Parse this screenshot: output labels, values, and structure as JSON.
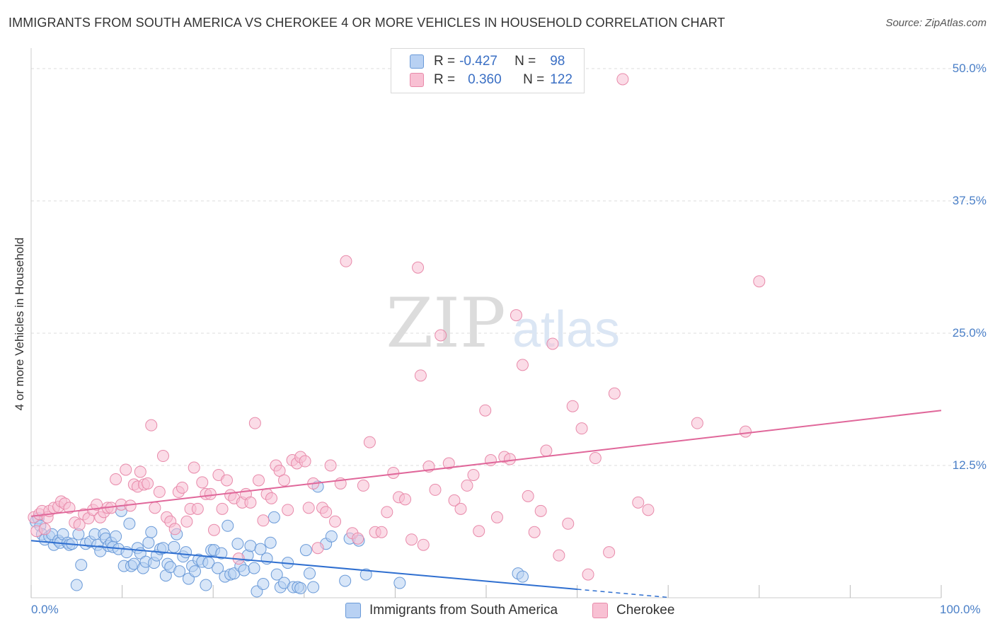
{
  "header": {
    "title": "IMMIGRANTS FROM SOUTH AMERICA VS CHEROKEE 4 OR MORE VEHICLES IN HOUSEHOLD CORRELATION CHART",
    "source": "Source: ZipAtlas.com"
  },
  "legend": {
    "r_label": "R =",
    "n_label": "N =",
    "series_a": {
      "r": "-0.427",
      "n": "98"
    },
    "series_b": {
      "r": "0.360",
      "n": "122"
    }
  },
  "colors": {
    "series_a_fill": "#b8d1f3",
    "series_a_stroke": "#6a9ad8",
    "series_a_line": "#2f6fd0",
    "series_b_fill": "#f8c0d3",
    "series_b_stroke": "#e88aaa",
    "series_b_line": "#e0679a",
    "tick_text": "#4a7fc7",
    "grid": "#dddddd"
  },
  "watermark": {
    "zip": "ZIP",
    "atlas": "atlas"
  },
  "chart_data": {
    "type": "scatter",
    "title": "IMMIGRANTS FROM SOUTH AMERICA VS CHEROKEE 4 OR MORE VEHICLES IN HOUSEHOLD CORRELATION CHART",
    "xlabel": "",
    "ylabel": "4 or more Vehicles in Household",
    "xlim": [
      0,
      100
    ],
    "ylim": [
      0,
      50
    ],
    "x_tick_labels": [
      "0.0%",
      "100.0%"
    ],
    "y_ticks": [
      12.5,
      25.0,
      37.5,
      50.0
    ],
    "y_tick_labels": [
      "12.5%",
      "25.0%",
      "37.5%",
      "50.0%"
    ],
    "grid": true,
    "legend_position": "top-center",
    "series": [
      {
        "name": "Immigrants from South America",
        "r": -0.427,
        "n": 98,
        "trend": {
          "x0": 0,
          "y0": 5.4,
          "x1": 60,
          "y1": 0.8,
          "dashed_to_x": 70
        },
        "points": [
          [
            0.5,
            7.2
          ],
          [
            0.8,
            7.5
          ],
          [
            1.0,
            6.8
          ],
          [
            1.2,
            6.0
          ],
          [
            1.5,
            5.5
          ],
          [
            2.0,
            5.8
          ],
          [
            2.3,
            6.0
          ],
          [
            2.5,
            5.0
          ],
          [
            3.0,
            5.4
          ],
          [
            3.2,
            5.2
          ],
          [
            3.5,
            6.0
          ],
          [
            4.0,
            5.2
          ],
          [
            4.2,
            5.0
          ],
          [
            4.5,
            5.1
          ],
          [
            5.0,
            1.2
          ],
          [
            5.2,
            6.0
          ],
          [
            5.5,
            3.1
          ],
          [
            6.0,
            5.1
          ],
          [
            6.5,
            5.3
          ],
          [
            7.0,
            6.0
          ],
          [
            7.3,
            5.0
          ],
          [
            7.6,
            4.4
          ],
          [
            8.0,
            6.0
          ],
          [
            8.2,
            5.6
          ],
          [
            8.5,
            4.9
          ],
          [
            8.8,
            5.2
          ],
          [
            9.0,
            4.8
          ],
          [
            9.3,
            5.8
          ],
          [
            9.6,
            4.6
          ],
          [
            9.9,
            8.2
          ],
          [
            10.2,
            3.0
          ],
          [
            10.5,
            4.3
          ],
          [
            10.8,
            7.0
          ],
          [
            11.0,
            3.0
          ],
          [
            11.3,
            3.2
          ],
          [
            11.7,
            4.7
          ],
          [
            12.0,
            4.2
          ],
          [
            12.3,
            2.8
          ],
          [
            12.6,
            3.4
          ],
          [
            12.9,
            5.2
          ],
          [
            13.2,
            6.2
          ],
          [
            13.5,
            3.3
          ],
          [
            13.8,
            4.0
          ],
          [
            14.2,
            4.6
          ],
          [
            14.5,
            4.7
          ],
          [
            14.8,
            2.1
          ],
          [
            15.0,
            3.2
          ],
          [
            15.3,
            2.9
          ],
          [
            15.7,
            4.8
          ],
          [
            16.0,
            6.0
          ],
          [
            16.3,
            2.5
          ],
          [
            16.7,
            3.9
          ],
          [
            17.0,
            4.3
          ],
          [
            17.3,
            1.8
          ],
          [
            17.7,
            3.0
          ],
          [
            18.0,
            2.5
          ],
          [
            18.4,
            3.6
          ],
          [
            18.8,
            3.4
          ],
          [
            19.2,
            1.2
          ],
          [
            19.5,
            3.3
          ],
          [
            19.8,
            4.5
          ],
          [
            20.1,
            4.5
          ],
          [
            20.5,
            2.8
          ],
          [
            20.9,
            4.2
          ],
          [
            21.3,
            2.0
          ],
          [
            21.6,
            6.8
          ],
          [
            21.9,
            2.2
          ],
          [
            22.3,
            2.3
          ],
          [
            22.7,
            5.1
          ],
          [
            23.0,
            3.0
          ],
          [
            23.4,
            2.6
          ],
          [
            23.8,
            4.0
          ],
          [
            24.1,
            4.9
          ],
          [
            24.5,
            2.8
          ],
          [
            24.8,
            0.6
          ],
          [
            25.2,
            4.6
          ],
          [
            25.5,
            1.3
          ],
          [
            25.9,
            3.7
          ],
          [
            26.3,
            5.2
          ],
          [
            26.7,
            7.6
          ],
          [
            27.0,
            2.2
          ],
          [
            27.4,
            1.0
          ],
          [
            27.8,
            1.4
          ],
          [
            28.2,
            3.3
          ],
          [
            28.8,
            1.0
          ],
          [
            29.3,
            1.0
          ],
          [
            29.6,
            0.9
          ],
          [
            30.2,
            4.5
          ],
          [
            30.6,
            2.3
          ],
          [
            31.0,
            1.0
          ],
          [
            31.5,
            10.5
          ],
          [
            32.4,
            5.1
          ],
          [
            33.0,
            5.8
          ],
          [
            34.5,
            1.6
          ],
          [
            35.0,
            5.6
          ],
          [
            36.0,
            5.4
          ],
          [
            36.8,
            2.2
          ],
          [
            40.5,
            1.4
          ],
          [
            53.5,
            2.3
          ],
          [
            54.0,
            2.0
          ]
        ]
      },
      {
        "name": "Cherokee",
        "r": 0.36,
        "n": 122,
        "trend": {
          "x0": 0,
          "y0": 7.7,
          "x1": 100,
          "y1": 17.7
        },
        "points": [
          [
            0.3,
            7.6
          ],
          [
            0.6,
            6.3
          ],
          [
            0.9,
            7.9
          ],
          [
            1.2,
            8.2
          ],
          [
            1.5,
            6.5
          ],
          [
            1.8,
            7.6
          ],
          [
            2.0,
            8.2
          ],
          [
            2.5,
            8.5
          ],
          [
            3.0,
            8.6
          ],
          [
            3.3,
            9.1
          ],
          [
            3.7,
            8.9
          ],
          [
            4.2,
            8.5
          ],
          [
            4.8,
            7.1
          ],
          [
            5.3,
            6.9
          ],
          [
            5.8,
            7.9
          ],
          [
            6.3,
            7.5
          ],
          [
            6.8,
            8.3
          ],
          [
            7.2,
            8.8
          ],
          [
            7.6,
            7.6
          ],
          [
            8.0,
            8.1
          ],
          [
            8.4,
            8.5
          ],
          [
            8.8,
            8.5
          ],
          [
            9.3,
            11.2
          ],
          [
            9.9,
            8.8
          ],
          [
            10.4,
            12.1
          ],
          [
            10.9,
            8.7
          ],
          [
            11.3,
            10.7
          ],
          [
            11.7,
            10.5
          ],
          [
            12.0,
            11.9
          ],
          [
            12.4,
            10.7
          ],
          [
            12.8,
            10.8
          ],
          [
            13.2,
            16.3
          ],
          [
            13.6,
            8.5
          ],
          [
            14.1,
            10.0
          ],
          [
            14.5,
            13.4
          ],
          [
            14.9,
            7.6
          ],
          [
            15.3,
            7.2
          ],
          [
            15.8,
            6.5
          ],
          [
            16.2,
            10.0
          ],
          [
            16.6,
            10.4
          ],
          [
            17.1,
            7.2
          ],
          [
            17.5,
            8.4
          ],
          [
            17.9,
            12.3
          ],
          [
            18.3,
            8.4
          ],
          [
            18.8,
            10.9
          ],
          [
            19.2,
            9.8
          ],
          [
            19.7,
            9.8
          ],
          [
            20.1,
            6.4
          ],
          [
            20.6,
            11.6
          ],
          [
            21.0,
            8.4
          ],
          [
            21.5,
            11.1
          ],
          [
            21.9,
            9.7
          ],
          [
            22.3,
            9.4
          ],
          [
            22.8,
            3.7
          ],
          [
            23.2,
            9.0
          ],
          [
            23.6,
            9.8
          ],
          [
            24.1,
            9.0
          ],
          [
            24.6,
            16.5
          ],
          [
            25.0,
            11.1
          ],
          [
            25.5,
            7.3
          ],
          [
            25.9,
            9.8
          ],
          [
            26.4,
            9.4
          ],
          [
            26.9,
            12.5
          ],
          [
            27.3,
            12.0
          ],
          [
            27.8,
            11.1
          ],
          [
            28.2,
            8.3
          ],
          [
            28.7,
            13.0
          ],
          [
            29.2,
            12.7
          ],
          [
            29.6,
            13.3
          ],
          [
            30.1,
            12.9
          ],
          [
            30.5,
            8.5
          ],
          [
            31.0,
            10.8
          ],
          [
            31.5,
            4.7
          ],
          [
            32.0,
            8.5
          ],
          [
            32.4,
            8.1
          ],
          [
            32.9,
            12.5
          ],
          [
            33.4,
            7.2
          ],
          [
            34.0,
            10.8
          ],
          [
            34.6,
            31.8
          ],
          [
            35.3,
            6.1
          ],
          [
            35.9,
            5.6
          ],
          [
            36.5,
            10.6
          ],
          [
            37.2,
            14.7
          ],
          [
            37.8,
            6.2
          ],
          [
            38.5,
            6.2
          ],
          [
            39.1,
            8.1
          ],
          [
            39.8,
            11.8
          ],
          [
            40.4,
            9.5
          ],
          [
            41.1,
            9.3
          ],
          [
            41.8,
            5.5
          ],
          [
            42.5,
            31.2
          ],
          [
            42.8,
            21.0
          ],
          [
            43.1,
            5.0
          ],
          [
            43.7,
            12.4
          ],
          [
            44.4,
            10.2
          ],
          [
            45.0,
            24.8
          ],
          [
            45.9,
            12.7
          ],
          [
            46.5,
            9.2
          ],
          [
            47.2,
            8.4
          ],
          [
            47.9,
            10.6
          ],
          [
            48.6,
            11.6
          ],
          [
            49.2,
            6.3
          ],
          [
            49.9,
            17.7
          ],
          [
            50.5,
            13.0
          ],
          [
            51.2,
            7.6
          ],
          [
            52.0,
            13.3
          ],
          [
            52.6,
            13.1
          ],
          [
            53.3,
            26.7
          ],
          [
            54.0,
            22.0
          ],
          [
            54.6,
            9.6
          ],
          [
            55.3,
            6.2
          ],
          [
            56.0,
            8.2
          ],
          [
            56.6,
            13.9
          ],
          [
            57.3,
            24.0
          ],
          [
            58.0,
            4.0
          ],
          [
            59.0,
            7.0
          ],
          [
            59.5,
            18.1
          ],
          [
            60.5,
            16.0
          ],
          [
            61.2,
            2.2
          ],
          [
            62.0,
            13.2
          ],
          [
            63.5,
            4.3
          ],
          [
            64.1,
            19.3
          ],
          [
            65.0,
            49.0
          ],
          [
            66.7,
            9.0
          ],
          [
            67.8,
            8.3
          ],
          [
            73.2,
            16.5
          ],
          [
            78.5,
            15.7
          ],
          [
            80.0,
            29.9
          ]
        ]
      }
    ]
  }
}
